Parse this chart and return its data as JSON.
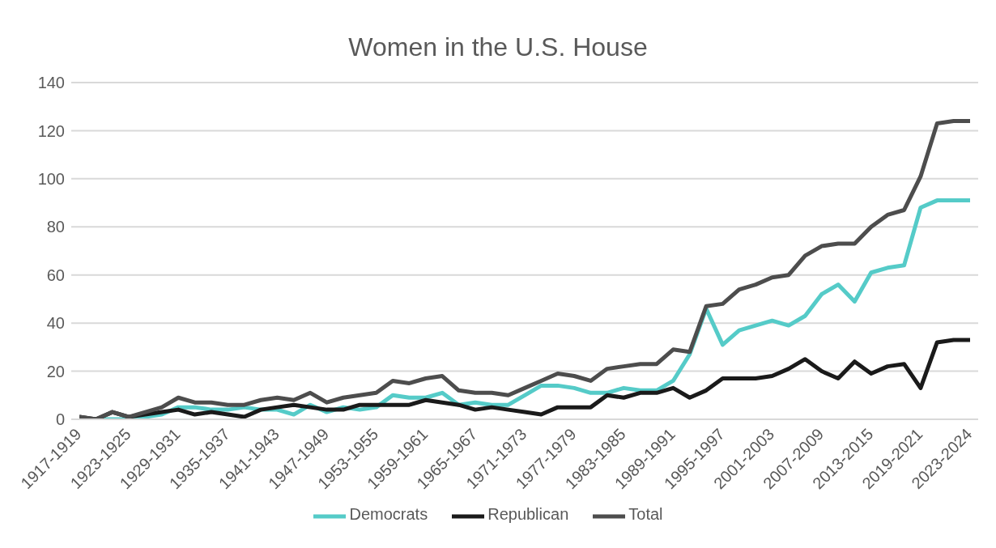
{
  "chart_data": {
    "type": "line",
    "title": "Women in the U.S. House",
    "categories": [
      "1917-1919",
      null,
      null,
      "1923-1925",
      null,
      null,
      "1929-1931",
      null,
      null,
      "1935-1937",
      null,
      null,
      "1941-1943",
      null,
      null,
      "1947-1949",
      null,
      null,
      "1953-1955",
      null,
      null,
      "1959-1961",
      null,
      null,
      "1965-1967",
      null,
      null,
      "1971-1973",
      null,
      null,
      "1977-1979",
      null,
      null,
      "1983-1985",
      null,
      null,
      "1989-1991",
      null,
      null,
      "1995-1997",
      null,
      null,
      "2001-2003",
      null,
      null,
      "2007-2009",
      null,
      null,
      "2013-2015",
      null,
      null,
      "2019-2021",
      null,
      null,
      "2023-2024"
    ],
    "series": [
      {
        "name": "Democrats",
        "color": "#55cbc8",
        "values": [
          0,
          0,
          0,
          0,
          1,
          2,
          5,
          5,
          4,
          4,
          5,
          4,
          4,
          2,
          6,
          3,
          5,
          4,
          5,
          10,
          9,
          9,
          11,
          6,
          7,
          6,
          6,
          10,
          14,
          14,
          13,
          11,
          11,
          13,
          12,
          12,
          16,
          27,
          46,
          31,
          37,
          39,
          41,
          39,
          43,
          52,
          56,
          49,
          61,
          63,
          64,
          88,
          91,
          91,
          91
        ]
      },
      {
        "name": "Republican",
        "color": "#1a1a1a",
        "values": [
          1,
          0,
          3,
          1,
          2,
          3,
          4,
          2,
          3,
          2,
          1,
          4,
          5,
          6,
          5,
          4,
          4,
          6,
          6,
          6,
          6,
          8,
          7,
          6,
          4,
          5,
          4,
          3,
          2,
          5,
          5,
          5,
          10,
          9,
          11,
          11,
          13,
          9,
          12,
          17,
          17,
          17,
          18,
          21,
          25,
          20,
          17,
          24,
          19,
          22,
          23,
          13,
          32,
          33,
          33
        ]
      },
      {
        "name": "Total",
        "color": "#4d4d4d",
        "values": [
          1,
          0,
          3,
          1,
          3,
          5,
          9,
          7,
          7,
          6,
          6,
          8,
          9,
          8,
          11,
          7,
          9,
          10,
          11,
          16,
          15,
          17,
          18,
          12,
          11,
          11,
          10,
          13,
          16,
          19,
          18,
          16,
          21,
          22,
          23,
          23,
          29,
          28,
          47,
          48,
          54,
          56,
          59,
          60,
          68,
          72,
          73,
          73,
          80,
          85,
          87,
          101,
          123,
          124,
          124
        ]
      }
    ],
    "ylim": [
      0,
      140
    ],
    "yticks": [
      0,
      20,
      40,
      60,
      80,
      100,
      120,
      140
    ],
    "grid": "y",
    "legend": "bottom",
    "marker": "none",
    "line_style": "solid"
  }
}
